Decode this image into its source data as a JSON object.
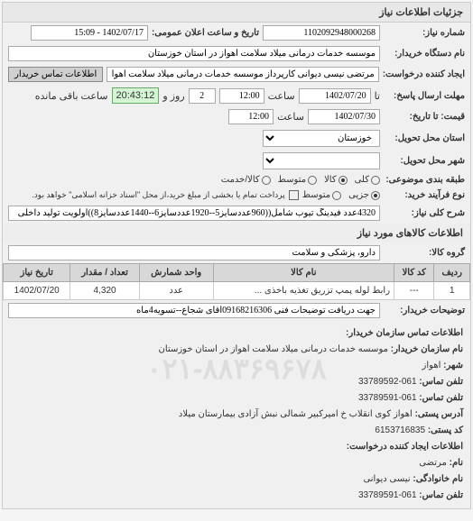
{
  "panel_title": "جزئیات اطلاعات نیاز",
  "request_number": {
    "label": "شماره نیاز:",
    "value": "1102092948000268",
    "announce_label": "تاریخ و ساعت اعلان عمومی:",
    "announce_value": "1402/07/17 - 15:09"
  },
  "buyer_org": {
    "label": "نام دستگاه خریدار:",
    "value": "موسسه خدمات درمانی میلاد سلامت اهواز در استان خوزستان"
  },
  "creator": {
    "label": "ایجاد کننده درخواست:",
    "value": "مرتضی نیسی دیوانی کارپرداز موسسه خدمات درمانی میلاد سلامت اهواز در ا",
    "button": "اطلاعات تماس خریدار"
  },
  "response_deadline": {
    "label": "مهلت ارسال پاسخ:",
    "ta": "تا",
    "from_label": "تاریخ:",
    "date": "1402/07/20",
    "time_label": "ساعت",
    "time": "12:00",
    "days": "2",
    "days_label": "روز و",
    "remaining": "20:43:12",
    "remaining_label": "ساعت باقی مانده"
  },
  "price_deadline": {
    "label": "قیمت: تا تاریخ:",
    "date": "1402/07/30",
    "time_label": "ساعت",
    "time": "12:00"
  },
  "location": {
    "label": "استان محل تحویل:",
    "value": "خوزستان"
  },
  "delivery": {
    "label": "شهر محل تحویل:"
  },
  "grouping": {
    "label": "طبقه بندی موضوعی:",
    "all": "کلی",
    "goods": "کالا",
    "medium": "متوسط",
    "service": "کالا/خدمت"
  },
  "process": {
    "label": "نوع فرآیند خرید:",
    "opt1": "جزیی",
    "opt2": "متوسط",
    "note": "پرداخت تمام یا بخشی از مبلغ خرید،از محل \"اسناد خزانه اسلامی\" خواهد بود."
  },
  "key_title": {
    "label": "شرح کلی نیاز:",
    "value": "4320عدد فیدینگ تیوب شامل((960عددسایز5--1920عددسایز6--1440عددسایز8))اولویت تولید داخلی"
  },
  "goods_section": "اطلاعات کالاهای مورد نیاز",
  "goods_group": {
    "label": "گروه کالا:",
    "value": "دارو، پزشکی و سلامت"
  },
  "table": {
    "headers": [
      "ردیف",
      "کد کالا",
      "نام کالا",
      "واحد شمارش",
      "تعداد / مقدار",
      "تاریخ نیاز"
    ],
    "row": {
      "num": "1",
      "code": "---",
      "name": "رابط لوله پمپ تزریق تغذیه باخذی ...",
      "unit": "عدد",
      "qty": "4,320",
      "date": "1402/07/20"
    }
  },
  "notes": {
    "label": "توضیحات خریدار:",
    "value": "جهت دریافت توضیحات فنی 09168216306اقای شجاع--تسویه4ماه"
  },
  "contact_section": "اطلاعات تماس سازمان خریدار:",
  "org_name": {
    "label": "نام سازمان خریدار:",
    "value": "موسسه خدمات درمانی میلاد سلامت اهواز در استان خوزستان"
  },
  "city": {
    "label": "شهر:",
    "value": "اهواز"
  },
  "phone": {
    "label": "تلفن تماس:",
    "value": "061-33789592"
  },
  "fax": {
    "label": "تلفن تماس:",
    "value": "061-33789591"
  },
  "address": {
    "label": "آدرس پستی:",
    "value": "اهواز کوی انقلاب خ امیرکبیر شمالی نبش آزادی بیمارستان میلاد"
  },
  "postal": {
    "label": "کد پستی:",
    "value": "6153716835"
  },
  "creator_section": "اطلاعات ایجاد کننده درخواست:",
  "creator_name": {
    "label": "نام:",
    "value": "مرتضی"
  },
  "creator_lastname": {
    "label": "نام خانوادگی:",
    "value": "نیسی دیوانی"
  },
  "creator_phone": {
    "label": "تلفن تماس:",
    "value": "061-33789591"
  },
  "watermark": "۰۲۱-۸۸۳۶۹۶۷۸"
}
